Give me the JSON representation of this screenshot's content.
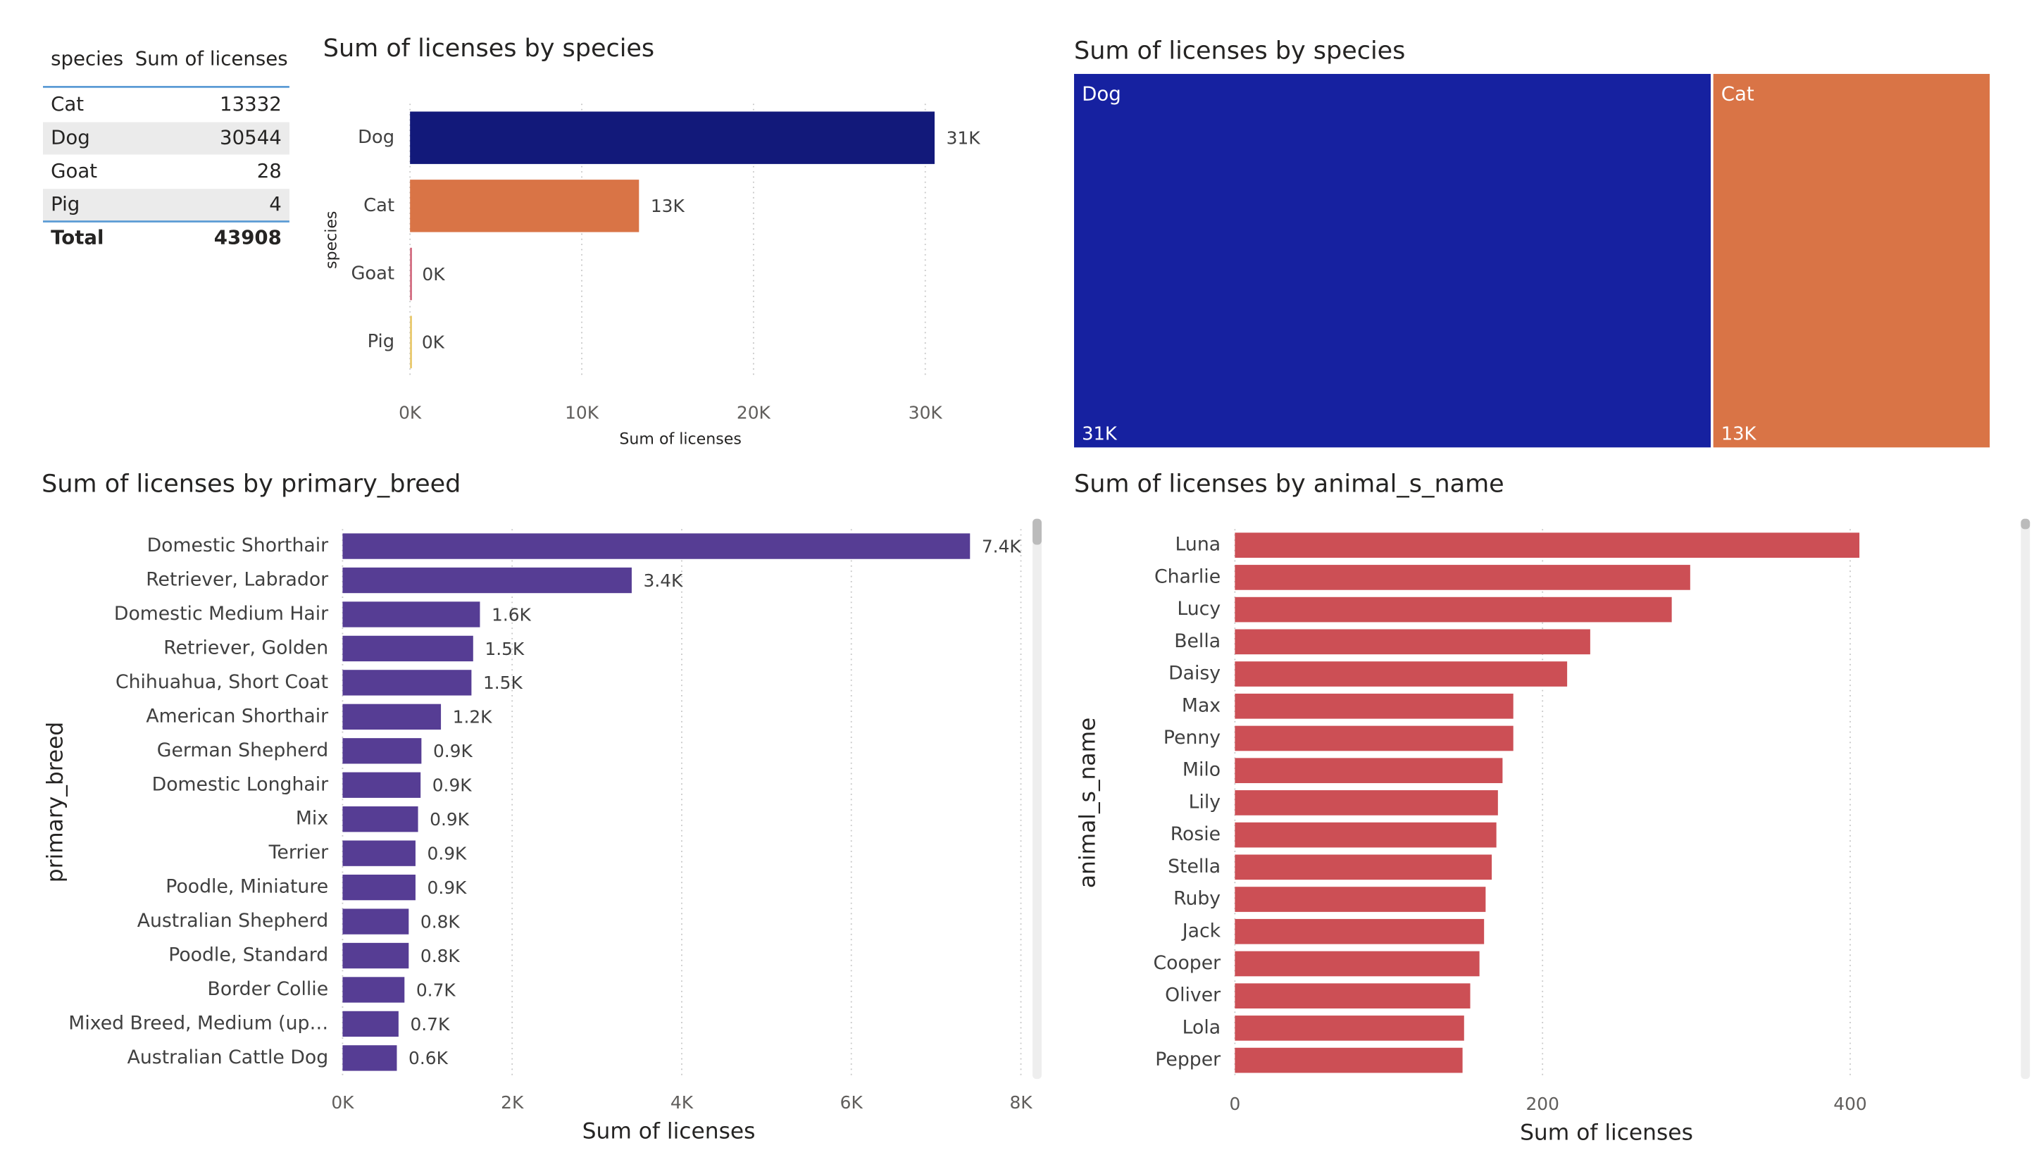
{
  "chart_data": [
    {
      "type": "table",
      "columns": [
        "species",
        "Sum of licenses"
      ],
      "rows": [
        [
          "Cat",
          13332
        ],
        [
          "Dog",
          30544
        ],
        [
          "Goat",
          28
        ],
        [
          "Pig",
          4
        ]
      ],
      "total": [
        "Total",
        43908
      ]
    },
    {
      "type": "bar",
      "orientation": "horizontal",
      "title": "Sum of licenses by species",
      "categories": [
        "Dog",
        "Cat",
        "Goat",
        "Pig"
      ],
      "values": [
        30544,
        13332,
        28,
        4
      ],
      "value_labels": [
        "31K",
        "13K",
        "0K",
        "0K"
      ],
      "colors": [
        "#12197a",
        "#d97446",
        "#d26b80",
        "#e8c86b"
      ],
      "xlim": [
        0,
        33000
      ],
      "xticks": [
        {
          "value": 0,
          "label": "0K"
        },
        {
          "value": 10000,
          "label": "10K"
        },
        {
          "value": 20000,
          "label": "20K"
        },
        {
          "value": 30000,
          "label": "30K"
        }
      ],
      "xlabel": "Sum of licenses",
      "ylabel": "species",
      "grid": true
    },
    {
      "type": "treemap",
      "title": "Sum of licenses by species",
      "categories": [
        "Dog",
        "Cat"
      ],
      "values": [
        30544,
        13332
      ],
      "value_labels": [
        "31K",
        "13K"
      ],
      "colors": [
        "#1621a0",
        "#d97446"
      ]
    },
    {
      "type": "bar",
      "orientation": "horizontal",
      "title": "Sum of licenses by primary_breed",
      "categories": [
        "Domestic Shorthair",
        "Retriever, Labrador",
        "Domestic Medium Hair",
        "Retriever, Golden",
        "Chihuahua, Short Coat",
        "American Shorthair",
        "German Shepherd",
        "Domestic Longhair",
        "Mix",
        "Terrier",
        "Poodle, Miniature",
        "Australian Shepherd",
        "Poodle, Standard",
        "Border Collie",
        "Mixed Breed, Medium (up…",
        "Australian Cattle Dog"
      ],
      "values": [
        7400,
        3410,
        1620,
        1540,
        1520,
        1160,
        930,
        920,
        890,
        860,
        860,
        780,
        780,
        730,
        660,
        640
      ],
      "value_labels": [
        "7.4K",
        "3.4K",
        "1.6K",
        "1.5K",
        "1.5K",
        "1.2K",
        "0.9K",
        "0.9K",
        "0.9K",
        "0.9K",
        "0.9K",
        "0.8K",
        "0.8K",
        "0.7K",
        "0.7K",
        "0.6K"
      ],
      "color": "#563d94",
      "xlim": [
        0,
        8000
      ],
      "xticks": [
        {
          "value": 0,
          "label": "0K"
        },
        {
          "value": 2000,
          "label": "2K"
        },
        {
          "value": 4000,
          "label": "4K"
        },
        {
          "value": 6000,
          "label": "6K"
        },
        {
          "value": 8000,
          "label": "8K"
        }
      ],
      "xlabel": "Sum of licenses",
      "ylabel": "primary_breed",
      "grid": true
    },
    {
      "type": "bar",
      "orientation": "horizontal",
      "title": "Sum of licenses by animal_s_name",
      "categories": [
        "Luna",
        "Charlie",
        "Lucy",
        "Bella",
        "Daisy",
        "Max",
        "Penny",
        "Milo",
        "Lily",
        "Rosie",
        "Stella",
        "Ruby",
        "Jack",
        "Cooper",
        "Oliver",
        "Lola",
        "Pepper"
      ],
      "values": [
        406,
        296,
        284,
        231,
        216,
        181,
        181,
        174,
        171,
        170,
        167,
        163,
        162,
        159,
        153,
        149,
        148
      ],
      "color": "#cc4f55",
      "xlim": [
        0,
        500
      ],
      "xticks": [
        0,
        200,
        400
      ],
      "xlabel": "Sum of licenses",
      "ylabel": "animal_s_name",
      "grid": true
    }
  ]
}
